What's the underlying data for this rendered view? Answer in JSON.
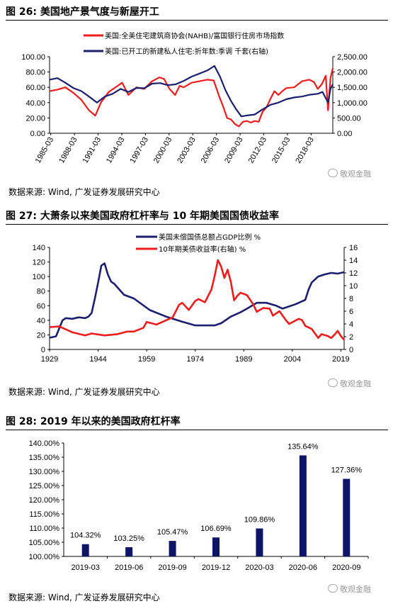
{
  "charts": [
    {
      "title": "图 26:  美国地产景气度与新屋开工",
      "source": "数据来源:  Wind,  广发证券发展研究中心",
      "watermark": "敬观金融"
    },
    {
      "title": "图 27:  大萧条以来美国政府杠杆率与 10 年期美国国债收益率",
      "source": "数据来源:  Wind,  广发证券发展研究中心",
      "watermark": "敬观金融"
    },
    {
      "title": "图 28:  2019 年以来的美国政府杠杆率",
      "source": "数据来源:  Wind,  广发证券发展研究中心",
      "watermark": "敬观金融"
    }
  ],
  "colors": {
    "red": "#ee1c1c",
    "navy": "#1b1f6e",
    "bar": "#0e1466"
  },
  "chart_data": [
    {
      "type": "line",
      "x_tick_labels": [
        "1985-03",
        "1988-03",
        "1991-03",
        "1994-03",
        "1997-03",
        "2000-03",
        "2003-03",
        "2006-03",
        "2009-03",
        "2012-03",
        "2015-03",
        "2018-03"
      ],
      "y_tick_labels": [
        "0.00",
        "20.00",
        "40.00",
        "60.00",
        "80.00",
        "100.00"
      ],
      "y2_tick_labels": [
        "0.00",
        "500.00",
        "1,000.00",
        "1,500.00",
        "2,000.00",
        "2,500.00"
      ],
      "ylim": [
        0,
        100
      ],
      "y2lim": [
        0,
        2500
      ],
      "xlim": [
        1985.0,
        2020.9
      ],
      "series": [
        {
          "name": "美国:全美住宅建筑商协会(NAHB)/富国银行住房市场指数",
          "axis": "left",
          "color": "#ee1c1c",
          "x": [
            1985.0,
            1986.0,
            1987.0,
            1988.0,
            1989.0,
            1990.0,
            1990.8,
            1991.5,
            1992.5,
            1993.5,
            1994.2,
            1995.0,
            1996.0,
            1997.0,
            1998.0,
            1998.9,
            1999.5,
            2000.2,
            2000.9,
            2001.5,
            2002.0,
            2003.0,
            2004.0,
            2005.0,
            2005.8,
            2006.5,
            2007.0,
            2007.5,
            2008.0,
            2008.5,
            2009.0,
            2009.5,
            2010.0,
            2010.5,
            2011.0,
            2011.5,
            2012.0,
            2012.5,
            2013.0,
            2013.5,
            2014.0,
            2014.5,
            2015.0,
            2016.0,
            2017.0,
            2017.9,
            2018.5,
            2019.0,
            2019.5,
            2020.0,
            2020.3,
            2020.6,
            2020.9
          ],
          "values": [
            55,
            57,
            60,
            53,
            44,
            30,
            23,
            40,
            54,
            61,
            66,
            50,
            60,
            58,
            68,
            73,
            71,
            58,
            50,
            62,
            60,
            66,
            68,
            70,
            69,
            48,
            35,
            20,
            18,
            12,
            9,
            15,
            16,
            14,
            16,
            15,
            28,
            34,
            45,
            55,
            50,
            55,
            59,
            60,
            68,
            70,
            67,
            58,
            64,
            75,
            30,
            72,
            85
          ]
        },
        {
          "name": "美国:已开工的新建私人住宅:折年数:季调 千套(右轴)",
          "axis": "right",
          "color": "#1b1f6e",
          "x": [
            1985.0,
            1986.0,
            1987.0,
            1988.0,
            1989.0,
            1990.0,
            1991.0,
            1992.0,
            1993.0,
            1994.0,
            1995.0,
            1996.0,
            1997.0,
            1998.0,
            1999.0,
            2000.0,
            2001.0,
            2002.0,
            2003.0,
            2004.0,
            2005.0,
            2005.9,
            2006.6,
            2007.3,
            2008.0,
            2008.6,
            2009.3,
            2010.0,
            2011.0,
            2012.0,
            2013.0,
            2014.0,
            2015.0,
            2016.0,
            2017.0,
            2018.0,
            2019.0,
            2019.6,
            2020.3,
            2020.6,
            2020.9
          ],
          "values": [
            1750,
            1800,
            1650,
            1480,
            1380,
            1200,
            1000,
            1200,
            1290,
            1450,
            1350,
            1480,
            1470,
            1620,
            1640,
            1570,
            1600,
            1710,
            1850,
            1950,
            2050,
            2200,
            1850,
            1400,
            1050,
            800,
            550,
            580,
            610,
            780,
            930,
            1000,
            1110,
            1170,
            1200,
            1260,
            1290,
            1350,
            1000,
            1450,
            1600
          ]
        }
      ]
    },
    {
      "type": "line",
      "x_tick_labels": [
        "1929",
        "1944",
        "1959",
        "1974",
        "1989",
        "2004",
        "2019"
      ],
      "y_tick_labels": [
        "0",
        "20",
        "40",
        "60",
        "80",
        "100",
        "120",
        "140"
      ],
      "y2_tick_labels": [
        "0",
        "2",
        "4",
        "6",
        "8",
        "10",
        "12",
        "14",
        "16"
      ],
      "xlim": [
        1929,
        2020
      ],
      "ylim": [
        0,
        140
      ],
      "y2lim": [
        0,
        16
      ],
      "series": [
        {
          "name": "美国未偿国债总额占GDP比例 %",
          "axis": "left",
          "color": "#1b1f6e",
          "x": [
            1929,
            1931,
            1933,
            1934,
            1936,
            1938,
            1940,
            1941,
            1942,
            1943,
            1944,
            1945,
            1946,
            1947,
            1948,
            1949,
            1950,
            1952,
            1955,
            1960,
            1965,
            1970,
            1974,
            1978,
            1980,
            1982,
            1985,
            1988,
            1990,
            1993,
            1996,
            1999,
            2001,
            2005,
            2008,
            2009,
            2010,
            2012,
            2014,
            2016,
            2018,
            2019,
            2020
          ],
          "values": [
            16,
            18,
            40,
            43,
            42,
            44,
            43,
            45,
            50,
            70,
            92,
            115,
            118,
            103,
            93,
            90,
            85,
            75,
            70,
            54,
            45,
            38,
            33,
            33,
            33,
            36,
            45,
            51,
            56,
            64,
            64,
            60,
            56,
            62,
            68,
            82,
            92,
            100,
            103,
            105,
            104,
            105,
            106
          ]
        },
        {
          "name": "10年期美债收益率(右轴) %",
          "axis": "right",
          "color": "#ee1c1c",
          "x": [
            1929,
            1932,
            1936,
            1940,
            1942,
            1946,
            1950,
            1953,
            1955,
            1958,
            1959,
            1962,
            1966,
            1967,
            1969,
            1970,
            1972,
            1974,
            1975,
            1977,
            1979,
            1980,
            1981,
            1982,
            1983,
            1984,
            1985,
            1986,
            1987,
            1988,
            1990,
            1992,
            1993,
            1995,
            1997,
            1998,
            2000,
            2002,
            2003,
            2006,
            2007,
            2008,
            2010,
            2012,
            2013,
            2015,
            2016,
            2017,
            2018,
            2019,
            2020
          ],
          "values": [
            3.5,
            3.6,
            2.7,
            2.2,
            2.5,
            2.2,
            2.4,
            2.8,
            2.8,
            3.4,
            4.3,
            3.9,
            4.8,
            5.0,
            7.0,
            7.3,
            6.2,
            7.6,
            7.9,
            7.4,
            9.4,
            11.5,
            14.0,
            13.0,
            11.2,
            12.5,
            10.6,
            7.7,
            8.4,
            8.9,
            8.5,
            7.0,
            5.9,
            6.5,
            6.4,
            5.3,
            6.0,
            4.6,
            4.0,
            4.8,
            4.6,
            3.7,
            3.2,
            1.8,
            2.4,
            2.1,
            1.8,
            2.3,
            2.9,
            2.1,
            1.5
          ]
        }
      ]
    },
    {
      "type": "bar",
      "categories": [
        "2019-03",
        "2019-06",
        "2019-09",
        "2019-12",
        "2020-03",
        "2020-06",
        "2020-09"
      ],
      "values": [
        104.32,
        103.25,
        105.47,
        106.69,
        109.86,
        135.64,
        127.36
      ],
      "value_labels": [
        "104.32%",
        "103.25%",
        "105.47%",
        "106.69%",
        "109.86%",
        "135.64%",
        "127.36%"
      ],
      "y_tick_labels": [
        "100.00%",
        "105.00%",
        "110.00%",
        "115.00%",
        "120.00%",
        "125.00%",
        "130.00%",
        "135.00%",
        "140.00%"
      ],
      "ylim": [
        100,
        140
      ],
      "color": "#0e1466"
    }
  ]
}
